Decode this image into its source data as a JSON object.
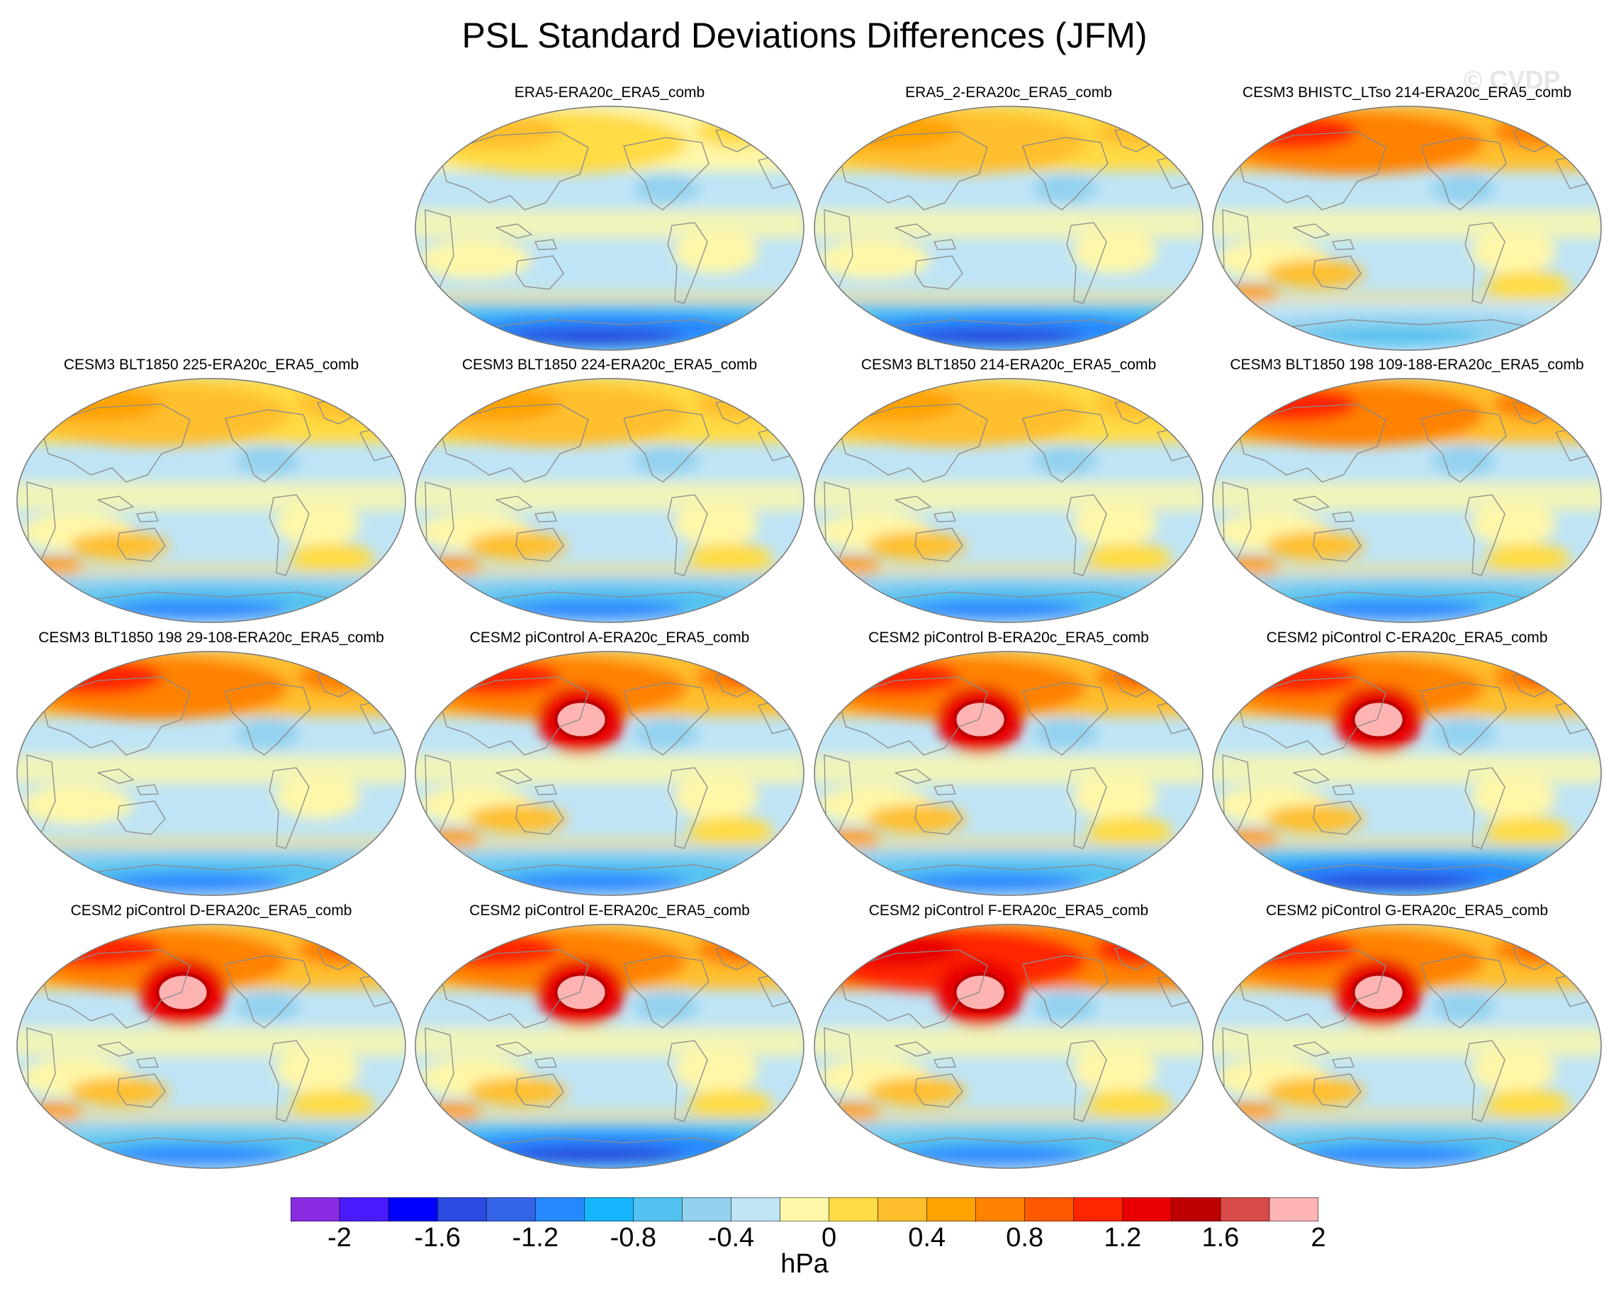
{
  "title": "PSL Standard Deviations Differences (JFM)",
  "watermark": "© CVDP",
  "units": "hPa",
  "colorbar": {
    "colors": [
      "#8a2be2",
      "#4b1bff",
      "#0000ff",
      "#2a4be0",
      "#3364e6",
      "#2589ff",
      "#16b6ff",
      "#52c3f0",
      "#93d2ef",
      "#bfe4f6",
      "#fff7a8",
      "#ffdb45",
      "#ffbf2d",
      "#ffa300",
      "#ff8200",
      "#ff5a00",
      "#ff2600",
      "#e80000",
      "#bf0000",
      "#d94a4a",
      "#ffb4b4"
    ],
    "tick_labels": [
      "-2",
      "-1.6",
      "-1.2",
      "-0.8",
      "-0.4",
      "0",
      "0.4",
      "0.8",
      "1.2",
      "1.6",
      "2"
    ]
  },
  "panels": [
    {
      "title": "ERA5-ERA20c_ERA5_comb",
      "nh": "warm-low",
      "pole": "dry",
      "south": "cold-high",
      "tropics": "neutral"
    },
    {
      "title": "ERA5_2-ERA20c_ERA5_comb",
      "nh": "warm-mid",
      "pole": "dry",
      "south": "cold-high",
      "tropics": "neutral"
    },
    {
      "title": "CESM3 BHISTC_LTso 214-ERA20c_ERA5_comb",
      "nh": "warm-high",
      "pole": "dry",
      "south": "cold-low",
      "tropics": "warm"
    },
    {
      "title": "CESM3 BLT1850 225-ERA20c_ERA5_comb",
      "nh": "warm-mid",
      "pole": "dry",
      "south": "cold-mid",
      "tropics": "warm"
    },
    {
      "title": "CESM3 BLT1850 224-ERA20c_ERA5_comb",
      "nh": "warm-mid",
      "pole": "dry",
      "south": "cold-mid",
      "tropics": "warm"
    },
    {
      "title": "CESM3 BLT1850 214-ERA20c_ERA5_comb",
      "nh": "warm-mid",
      "pole": "dry",
      "south": "cold-mid",
      "tropics": "warm"
    },
    {
      "title": "CESM3 BLT1850 198 109-188-ERA20c_ERA5_comb",
      "nh": "warm-high",
      "pole": "dry",
      "south": "cold-mid",
      "tropics": "warm"
    },
    {
      "title": "CESM3 BLT1850 198 29-108-ERA20c_ERA5_comb",
      "nh": "warm-high",
      "pole": "dry",
      "south": "cold-mid",
      "tropics": "neutral"
    },
    {
      "title": "CESM2 piControl A-ERA20c_ERA5_comb",
      "nh": "warm-high",
      "pole": "pink",
      "south": "cold-mid",
      "tropics": "warm"
    },
    {
      "title": "CESM2 piControl B-ERA20c_ERA5_comb",
      "nh": "warm-high",
      "pole": "pink",
      "south": "cold-mid",
      "tropics": "warm"
    },
    {
      "title": "CESM2 piControl C-ERA20c_ERA5_comb",
      "nh": "warm-high",
      "pole": "pink",
      "south": "cold-high",
      "tropics": "warm"
    },
    {
      "title": "CESM2 piControl D-ERA20c_ERA5_comb",
      "nh": "warm-high",
      "pole": "pink",
      "south": "cold-mid",
      "tropics": "warm"
    },
    {
      "title": "CESM2 piControl E-ERA20c_ERA5_comb",
      "nh": "warm-high",
      "pole": "pink",
      "south": "cold-high",
      "tropics": "warm"
    },
    {
      "title": "CESM2 piControl F-ERA20c_ERA5_comb",
      "nh": "warm-max",
      "pole": "pink",
      "south": "cold-mid",
      "tropics": "warm"
    },
    {
      "title": "CESM2 piControl G-ERA20c_ERA5_comb",
      "nh": "warm-high",
      "pole": "pink",
      "south": "cold-mid",
      "tropics": "warm"
    }
  ]
}
